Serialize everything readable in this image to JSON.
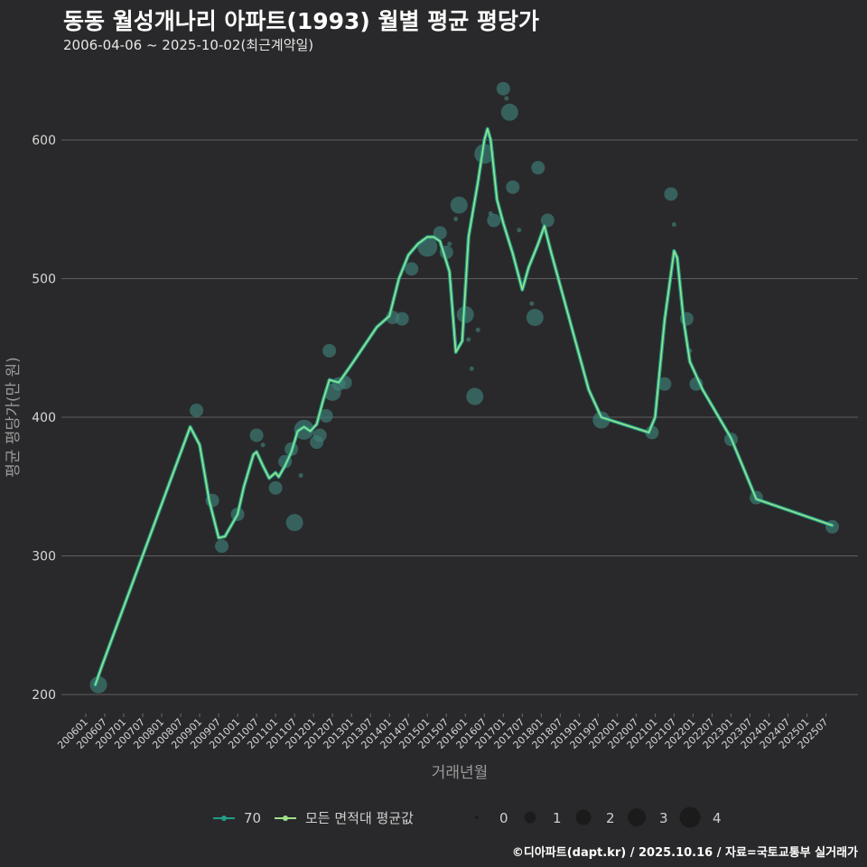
{
  "title": "동동 월성개나리 아파트(1993) 월별 평균 평당가",
  "subtitle": "2006-04-06 ~ 2025-10-02(최근계약일)",
  "caption": "©디아파트(dapt.kr) / 2025.10.16 / 자료=국토교통부 실거래가",
  "colors": {
    "background": "#29292b",
    "grid": "#5e5e60",
    "series_70": "#1f9e89",
    "series_all": "#9fe28b",
    "bubble": "#3f7f78"
  },
  "chart_data": {
    "type": "line",
    "xlabel": "거래년월",
    "ylabel": "평균 평당가(만 원)",
    "ylim": [
      190,
      645
    ],
    "yticks": [
      200,
      300,
      400,
      500,
      600
    ],
    "xticks": [
      "200601",
      "200607",
      "200701",
      "200707",
      "200801",
      "200807",
      "200901",
      "200907",
      "201001",
      "201007",
      "201101",
      "201107",
      "201201",
      "201207",
      "201301",
      "201307",
      "201401",
      "201407",
      "201501",
      "201507",
      "201601",
      "201607",
      "201701",
      "201707",
      "201801",
      "201807",
      "201901",
      "201907",
      "202001",
      "202007",
      "202101",
      "202107",
      "202201",
      "202207",
      "202301",
      "202307",
      "202401",
      "202407",
      "202501",
      "202507"
    ],
    "x_start": "200601",
    "x_end": "202510",
    "series": [
      {
        "name": "70",
        "points": [
          [
            "2006-04",
            207
          ],
          [
            "2006-06",
            220
          ],
          [
            "2008-10",
            393
          ],
          [
            "2009-01",
            380
          ],
          [
            "2009-04",
            340
          ],
          [
            "2009-07",
            313
          ],
          [
            "2009-09",
            314
          ],
          [
            "2010-01",
            330
          ],
          [
            "2010-03",
            350
          ],
          [
            "2010-06",
            373
          ],
          [
            "2010-07",
            375
          ],
          [
            "2010-09",
            365
          ],
          [
            "2010-11",
            356
          ],
          [
            "2011-01",
            360
          ],
          [
            "2011-02",
            357
          ],
          [
            "2011-04",
            365
          ],
          [
            "2011-06",
            375
          ],
          [
            "2011-08",
            390
          ],
          [
            "2011-10",
            393
          ],
          [
            "2011-12",
            390
          ],
          [
            "2012-02",
            395
          ],
          [
            "2012-04",
            412
          ],
          [
            "2012-06",
            427
          ],
          [
            "2012-09",
            425
          ],
          [
            "2013-01",
            438
          ],
          [
            "2013-09",
            465
          ],
          [
            "2014-01",
            473
          ],
          [
            "2014-04",
            500
          ],
          [
            "2014-07",
            517
          ],
          [
            "2014-10",
            525
          ],
          [
            "2015-01",
            530
          ],
          [
            "2015-03",
            530
          ],
          [
            "2015-05",
            527
          ],
          [
            "2015-08",
            505
          ],
          [
            "2015-10",
            447
          ],
          [
            "2015-12",
            455
          ],
          [
            "2016-02",
            530
          ],
          [
            "2016-05",
            570
          ],
          [
            "2016-07",
            600
          ],
          [
            "2016-08",
            608
          ],
          [
            "2016-09",
            600
          ],
          [
            "2016-11",
            557
          ],
          [
            "2017-01",
            540
          ],
          [
            "2017-04",
            518
          ],
          [
            "2017-07",
            492
          ],
          [
            "2017-09",
            508
          ],
          [
            "2017-12",
            525
          ],
          [
            "2018-02",
            538
          ],
          [
            "2018-04",
            520
          ],
          [
            "2019-04",
            420
          ],
          [
            "2019-08",
            400
          ],
          [
            "2020-11",
            389
          ],
          [
            "2021-01",
            400
          ],
          [
            "2021-04",
            470
          ],
          [
            "2021-07",
            520
          ],
          [
            "2021-08",
            515
          ],
          [
            "2021-10",
            470
          ],
          [
            "2021-12",
            440
          ],
          [
            "2022-04",
            420
          ],
          [
            "2023-01",
            385
          ],
          [
            "2023-09",
            341
          ],
          [
            "2025-09",
            322
          ]
        ]
      },
      {
        "name": "모든 면적대 평균값",
        "points": [
          [
            "2006-04",
            207
          ],
          [
            "2006-06",
            220
          ],
          [
            "2008-10",
            393
          ],
          [
            "2009-01",
            380
          ],
          [
            "2009-04",
            340
          ],
          [
            "2009-07",
            313
          ],
          [
            "2009-09",
            314
          ],
          [
            "2010-01",
            330
          ],
          [
            "2010-03",
            350
          ],
          [
            "2010-06",
            373
          ],
          [
            "2010-07",
            375
          ],
          [
            "2010-09",
            365
          ],
          [
            "2010-11",
            356
          ],
          [
            "2011-01",
            360
          ],
          [
            "2011-02",
            357
          ],
          [
            "2011-04",
            365
          ],
          [
            "2011-06",
            375
          ],
          [
            "2011-08",
            390
          ],
          [
            "2011-10",
            393
          ],
          [
            "2011-12",
            390
          ],
          [
            "2012-02",
            395
          ],
          [
            "2012-04",
            412
          ],
          [
            "2012-06",
            427
          ],
          [
            "2012-09",
            425
          ],
          [
            "2013-01",
            438
          ],
          [
            "2013-09",
            465
          ],
          [
            "2014-01",
            473
          ],
          [
            "2014-04",
            500
          ],
          [
            "2014-07",
            517
          ],
          [
            "2014-10",
            525
          ],
          [
            "2015-01",
            530
          ],
          [
            "2015-03",
            530
          ],
          [
            "2015-05",
            527
          ],
          [
            "2015-08",
            505
          ],
          [
            "2015-10",
            447
          ],
          [
            "2015-12",
            455
          ],
          [
            "2016-02",
            530
          ],
          [
            "2016-05",
            570
          ],
          [
            "2016-07",
            600
          ],
          [
            "2016-08",
            608
          ],
          [
            "2016-09",
            600
          ],
          [
            "2016-11",
            557
          ],
          [
            "2017-01",
            540
          ],
          [
            "2017-04",
            518
          ],
          [
            "2017-07",
            492
          ],
          [
            "2017-09",
            508
          ],
          [
            "2017-12",
            525
          ],
          [
            "2018-02",
            538
          ],
          [
            "2018-04",
            520
          ],
          [
            "2019-04",
            420
          ],
          [
            "2019-08",
            400
          ],
          [
            "2020-11",
            389
          ],
          [
            "2021-01",
            400
          ],
          [
            "2021-04",
            470
          ],
          [
            "2021-07",
            520
          ],
          [
            "2021-08",
            515
          ],
          [
            "2021-10",
            470
          ],
          [
            "2021-12",
            440
          ],
          [
            "2022-04",
            420
          ],
          [
            "2023-01",
            385
          ],
          [
            "2023-09",
            341
          ],
          [
            "2025-09",
            322
          ]
        ]
      }
    ],
    "bubbles": [
      [
        "2006-05",
        207,
        2
      ],
      [
        "2008-12",
        405,
        1
      ],
      [
        "2009-05",
        340,
        1
      ],
      [
        "2009-08",
        307,
        1
      ],
      [
        "2010-01",
        330,
        1
      ],
      [
        "2010-07",
        387,
        1
      ],
      [
        "2010-09",
        380,
        0
      ],
      [
        "2011-01",
        349,
        1
      ],
      [
        "2011-04",
        368,
        1
      ],
      [
        "2011-06",
        377,
        1
      ],
      [
        "2011-07",
        324,
        2
      ],
      [
        "2011-09",
        358,
        0
      ],
      [
        "2011-10",
        391,
        3
      ],
      [
        "2012-02",
        382,
        1
      ],
      [
        "2012-03",
        387,
        1
      ],
      [
        "2012-05",
        401,
        1
      ],
      [
        "2012-06",
        448,
        1
      ],
      [
        "2012-07",
        418,
        2
      ],
      [
        "2012-09",
        424,
        1
      ],
      [
        "2012-11",
        425,
        1
      ],
      [
        "2014-02",
        472,
        1
      ],
      [
        "2014-05",
        471,
        1
      ],
      [
        "2014-08",
        507,
        1
      ],
      [
        "2015-01",
        523,
        3
      ],
      [
        "2015-05",
        533,
        1
      ],
      [
        "2015-07",
        519,
        1
      ],
      [
        "2015-08",
        525,
        0
      ],
      [
        "2015-10",
        543,
        0
      ],
      [
        "2015-11",
        553,
        2
      ],
      [
        "2016-01",
        474,
        2
      ],
      [
        "2016-02",
        456,
        0
      ],
      [
        "2016-03",
        435,
        0
      ],
      [
        "2016-04",
        415,
        2
      ],
      [
        "2016-05",
        463,
        0
      ],
      [
        "2016-07",
        590,
        3
      ],
      [
        "2016-09",
        547,
        0
      ],
      [
        "2016-10",
        542,
        1
      ],
      [
        "2017-01",
        637,
        1
      ],
      [
        "2017-02",
        630,
        0
      ],
      [
        "2017-03",
        620,
        2
      ],
      [
        "2017-04",
        566,
        1
      ],
      [
        "2017-06",
        535,
        0
      ],
      [
        "2017-10",
        482,
        0
      ],
      [
        "2017-11",
        472,
        2
      ],
      [
        "2017-12",
        580,
        1
      ],
      [
        "2018-03",
        542,
        1
      ],
      [
        "2019-08",
        398,
        2
      ],
      [
        "2020-12",
        389,
        1
      ],
      [
        "2021-04",
        424,
        1
      ],
      [
        "2021-06",
        561,
        1
      ],
      [
        "2021-07",
        539,
        0
      ],
      [
        "2021-11",
        471,
        1
      ],
      [
        "2021-12",
        448,
        0
      ],
      [
        "2022-02",
        424,
        1
      ],
      [
        "2023-01",
        384,
        1
      ],
      [
        "2023-09",
        342,
        1
      ],
      [
        "2025-09",
        321,
        1
      ]
    ]
  },
  "legend": {
    "series_70": "70",
    "series_all": "모든 면적대 평균값",
    "sizes": [
      "0",
      "1",
      "2",
      "3",
      "4"
    ]
  }
}
